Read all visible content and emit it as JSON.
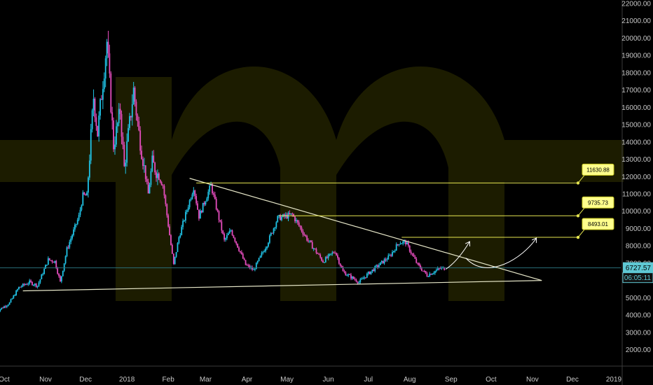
{
  "chart_data": {
    "type": "candlestick",
    "ylim": [
      1700,
      22000
    ],
    "y_ticks": [
      "22000.00",
      "21000.00",
      "20000.00",
      "19000.00",
      "18000.00",
      "17000.00",
      "16000.00",
      "15000.00",
      "14000.00",
      "13000.00",
      "12000.00",
      "11000.00",
      "10000.00",
      "9000.00",
      "8000.00",
      "7000.00",
      "6000.00",
      "5000.00",
      "4000.00",
      "3000.00",
      "2000.00"
    ],
    "x_ticks": [
      "Oct",
      "Nov",
      "Dec",
      "2018",
      "Feb",
      "Mar",
      "Apr",
      "May",
      "Jun",
      "Jul",
      "Aug",
      "Sep",
      "Oct",
      "Nov",
      "Dec",
      "2019"
    ],
    "price_series": [
      [
        "2017-09-25",
        4200
      ],
      [
        "2017-10-05",
        4700
      ],
      [
        "2017-10-12",
        5600
      ],
      [
        "2017-10-20",
        5900
      ],
      [
        "2017-10-26",
        5700
      ],
      [
        "2017-11-03",
        7200
      ],
      [
        "2017-11-08",
        7100
      ],
      [
        "2017-11-12",
        5900
      ],
      [
        "2017-11-17",
        7800
      ],
      [
        "2017-11-26",
        9700
      ],
      [
        "2017-11-29",
        10900
      ],
      [
        "2017-12-02",
        10900
      ],
      [
        "2017-12-07",
        16600
      ],
      [
        "2017-12-10",
        14500
      ],
      [
        "2017-12-17",
        19800
      ],
      [
        "2017-12-22",
        13800
      ],
      [
        "2017-12-27",
        15800
      ],
      [
        "2017-12-30",
        12500
      ],
      [
        "2018-01-06",
        17000
      ],
      [
        "2018-01-10",
        14500
      ],
      [
        "2018-01-17",
        11000
      ],
      [
        "2018-01-20",
        12800
      ],
      [
        "2018-01-28",
        11500
      ],
      [
        "2018-02-05",
        6900
      ],
      [
        "2018-02-09",
        8500
      ],
      [
        "2018-02-20",
        11400
      ],
      [
        "2018-02-24",
        9700
      ],
      [
        "2018-03-05",
        11500
      ],
      [
        "2018-03-15",
        8300
      ],
      [
        "2018-03-20",
        8900
      ],
      [
        "2018-03-31",
        6900
      ],
      [
        "2018-04-06",
        6600
      ],
      [
        "2018-04-16",
        8100
      ],
      [
        "2018-04-24",
        9600
      ],
      [
        "2018-05-05",
        9800
      ],
      [
        "2018-05-16",
        8400
      ],
      [
        "2018-05-28",
        7100
      ],
      [
        "2018-06-06",
        7700
      ],
      [
        "2018-06-12",
        6500
      ],
      [
        "2018-06-24",
        5900
      ],
      [
        "2018-07-01",
        6400
      ],
      [
        "2018-07-17",
        7400
      ],
      [
        "2018-07-24",
        8200
      ],
      [
        "2018-07-29",
        8200
      ],
      [
        "2018-08-07",
        6900
      ],
      [
        "2018-08-14",
        6300
      ],
      [
        "2018-08-24",
        6700
      ],
      [
        "2018-08-27",
        6700
      ]
    ],
    "last_price": "6727.57",
    "countdown": "06:05:11",
    "horizontal_levels": [
      {
        "value": 11630.88,
        "label": "11630.88",
        "start": "2018-02-22"
      },
      {
        "value": 9735.73,
        "label": "9735.73",
        "start": "2018-04-25"
      },
      {
        "value": 8493.01,
        "label": "8493.01",
        "start": "2018-07-26"
      }
    ],
    "trendlines": [
      {
        "name": "upper-trendline",
        "from": [
          "2018-02-17",
          11900
        ],
        "to": [
          "2018-11-08",
          6000
        ]
      },
      {
        "name": "lower-trendline",
        "from": [
          "2017-10-15",
          5400
        ],
        "to": [
          "2018-11-08",
          6000
        ]
      }
    ],
    "projection_paths": [
      [
        [
          "2018-08-28",
          6650
        ],
        [
          "2018-09-06",
          7100
        ],
        [
          "2018-09-15",
          8250
        ]
      ],
      [
        [
          "2018-09-12",
          7300
        ],
        [
          "2018-09-28",
          5950
        ],
        [
          "2018-10-25",
          7300
        ],
        [
          "2018-11-04",
          8450
        ]
      ]
    ],
    "colors": {
      "background": "#000000",
      "candle_up": "#20c3e6",
      "candle_down": "#e64dbe",
      "level_line": "#e6e650",
      "level_box": "#ffff8c",
      "trendline": "#e6e6c8",
      "last_price_line": "#2a6f7a",
      "last_price_box": "#5fc8d4",
      "watermark": "#1c1c00"
    }
  }
}
